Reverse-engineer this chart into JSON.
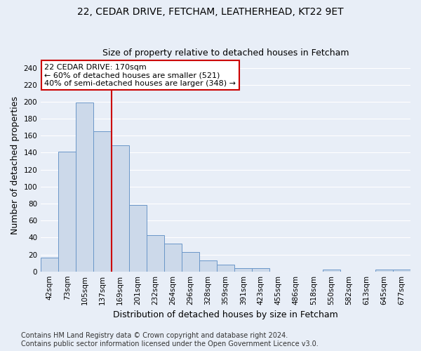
{
  "title_line1": "22, CEDAR DRIVE, FETCHAM, LEATHERHEAD, KT22 9ET",
  "title_line2": "Size of property relative to detached houses in Fetcham",
  "xlabel": "Distribution of detached houses by size in Fetcham",
  "ylabel": "Number of detached properties",
  "bar_color": "#ccd9ea",
  "bar_edge_color": "#6a96c8",
  "annotation_text": "22 CEDAR DRIVE: 170sqm\n← 60% of detached houses are smaller (521)\n40% of semi-detached houses are larger (348) →",
  "annotation_box_color": "#ffffff",
  "annotation_box_edge_color": "#cc0000",
  "vline_x": 3.5,
  "vline_color": "#cc0000",
  "categories": [
    "42sqm",
    "73sqm",
    "105sqm",
    "137sqm",
    "169sqm",
    "201sqm",
    "232sqm",
    "264sqm",
    "296sqm",
    "328sqm",
    "359sqm",
    "391sqm",
    "423sqm",
    "455sqm",
    "486sqm",
    "518sqm",
    "550sqm",
    "582sqm",
    "613sqm",
    "645sqm",
    "677sqm"
  ],
  "values": [
    16,
    141,
    199,
    165,
    149,
    78,
    43,
    33,
    23,
    13,
    8,
    4,
    4,
    0,
    0,
    0,
    2,
    0,
    0,
    2,
    2
  ],
  "ylim": [
    0,
    250
  ],
  "yticks": [
    0,
    20,
    40,
    60,
    80,
    100,
    120,
    140,
    160,
    180,
    200,
    220,
    240
  ],
  "background_color": "#e8eef7",
  "grid_color": "#ffffff",
  "title_fontsize": 10,
  "subtitle_fontsize": 9,
  "axis_label_fontsize": 9,
  "tick_fontsize": 7.5,
  "footer_fontsize": 7,
  "annotation_fontsize": 8,
  "footer_text": "Contains HM Land Registry data © Crown copyright and database right 2024.\nContains public sector information licensed under the Open Government Licence v3.0."
}
